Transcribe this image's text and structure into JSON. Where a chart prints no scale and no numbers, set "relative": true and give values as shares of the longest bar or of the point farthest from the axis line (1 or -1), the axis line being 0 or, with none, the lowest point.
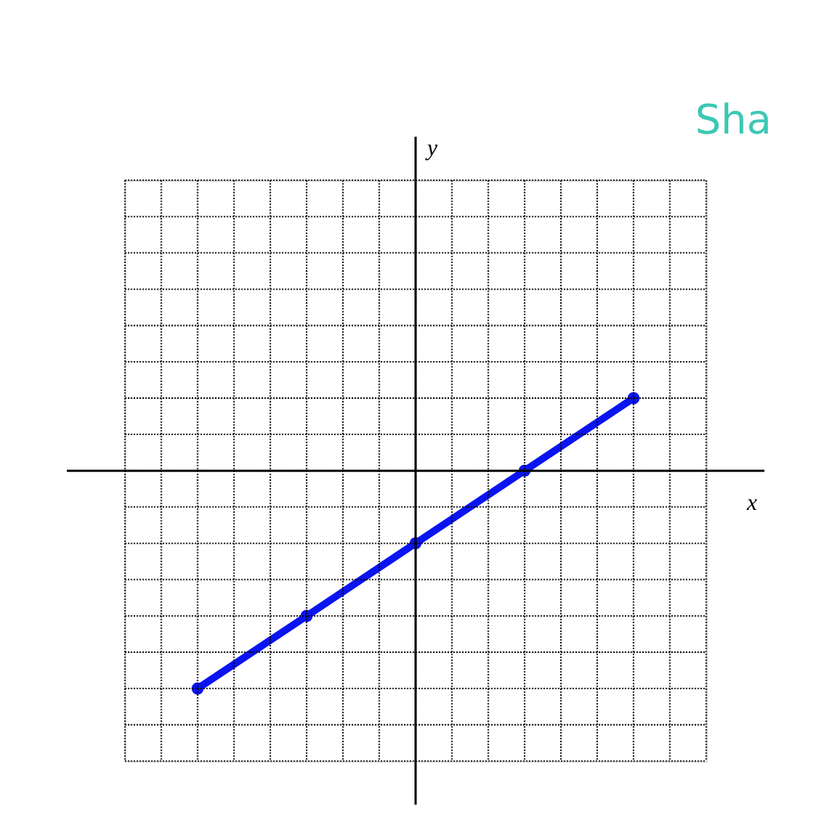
{
  "chart_data": {
    "type": "line",
    "relative": true,
    "categories": [
      null,
      null,
      null,
      null,
      null
    ],
    "series": [
      {
        "color": "#0a14f0",
        "values": [
          -1,
          -0.667,
          -0.333,
          0,
          0.333
        ]
      }
    ],
    "xlabel": "x",
    "annotations": [
      "y",
      "Sha"
    ],
    "grid": true,
    "marker": "circle",
    "line_style": "solid"
  }
}
